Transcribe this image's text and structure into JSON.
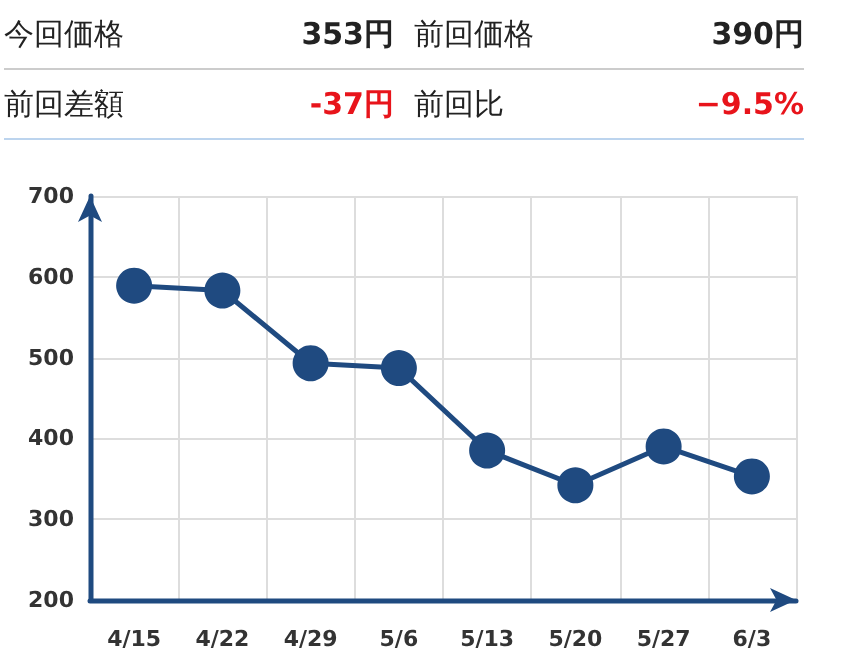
{
  "chart_data": {
    "type": "line",
    "annotations": [
      "今回価格",
      "353円",
      "前回価格",
      "390円",
      "前回差額",
      "-37円",
      "前回比",
      "−9.5%"
    ],
    "categories": [
      "4/15",
      "4/22",
      "4/29",
      "5/6",
      "5/13",
      "5/20",
      "5/27",
      "6/3"
    ],
    "series": [
      {
        "color": "#1f4a80",
        "values": [
          589,
          583,
          493,
          487,
          385,
          342,
          390,
          353
        ]
      }
    ],
    "ylim": [
      200,
      700
    ],
    "yticks": [
      200,
      300,
      400,
      500,
      600,
      700
    ],
    "grid": true,
    "marker": "circle",
    "line_style": "solid"
  }
}
